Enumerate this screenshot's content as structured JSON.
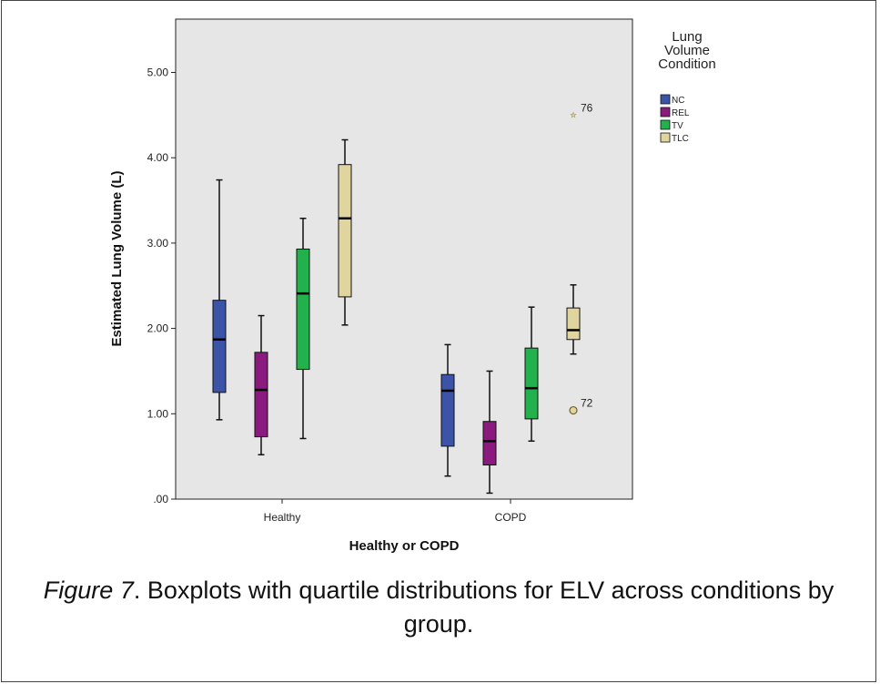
{
  "chart_data": {
    "type": "boxplot",
    "ylabel": "Estimated Lung Volume (L)",
    "xlabel": "Healthy or COPD",
    "categories": [
      "Healthy",
      "COPD"
    ],
    "ylim": [
      0,
      5.5
    ],
    "yticks": [
      {
        "value": 0,
        "label": ".00"
      },
      {
        "value": 1,
        "label": "1.00"
      },
      {
        "value": 2,
        "label": "2.00"
      },
      {
        "value": 3,
        "label": "3.00"
      },
      {
        "value": 4,
        "label": "4.00"
      },
      {
        "value": 5,
        "label": "5.00"
      }
    ],
    "grid": false,
    "legend": {
      "title": "Lung\nVolume\nCondition",
      "placement": "right"
    },
    "series": [
      {
        "name": "NC",
        "color": "#3b54a8",
        "boxes": [
          {
            "min": 0.93,
            "q1": 1.25,
            "median": 1.87,
            "q3": 2.33,
            "max": 3.74
          },
          {
            "min": 0.27,
            "q1": 0.62,
            "median": 1.27,
            "q3": 1.46,
            "max": 1.81
          }
        ]
      },
      {
        "name": "REL",
        "color": "#8b1a7e",
        "boxes": [
          {
            "min": 0.52,
            "q1": 0.73,
            "median": 1.28,
            "q3": 1.72,
            "max": 2.15
          },
          {
            "min": 0.07,
            "q1": 0.4,
            "median": 0.68,
            "q3": 0.91,
            "max": 1.5
          }
        ]
      },
      {
        "name": "TV",
        "color": "#22b14c",
        "boxes": [
          {
            "min": 0.71,
            "q1": 1.52,
            "median": 2.41,
            "q3": 2.93,
            "max": 3.29
          },
          {
            "min": 0.68,
            "q1": 0.94,
            "median": 1.3,
            "q3": 1.77,
            "max": 2.25
          }
        ]
      },
      {
        "name": "TLC",
        "color": "#e0d59e",
        "boxes": [
          {
            "min": 2.04,
            "q1": 2.37,
            "median": 3.29,
            "q3": 3.92,
            "max": 4.21
          },
          {
            "min": 1.7,
            "q1": 1.87,
            "median": 1.98,
            "q3": 2.24,
            "max": 2.51
          }
        ]
      }
    ],
    "outliers": [
      {
        "category": "COPD",
        "series": "TLC",
        "value": 4.5,
        "label": "76",
        "marker": "star"
      },
      {
        "category": "COPD",
        "series": "TLC",
        "value": 1.04,
        "label": "72",
        "marker": "circle"
      }
    ]
  },
  "caption": {
    "label": "Figure 7",
    "text": ". Boxplots with quartile distributions for ELV across conditions by group."
  }
}
